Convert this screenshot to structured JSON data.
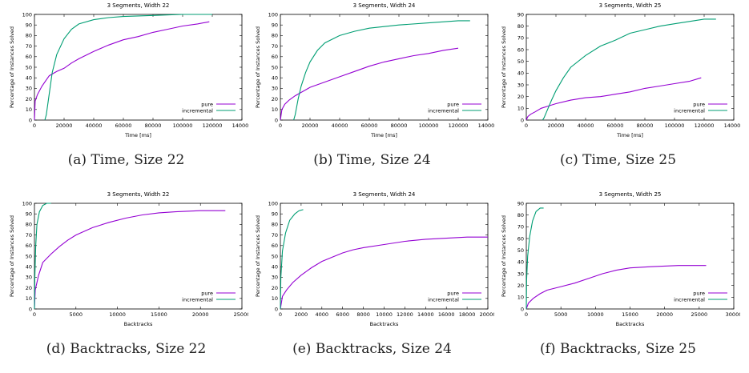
{
  "colors": {
    "pure": "#9400d3",
    "incremental": "#009e73",
    "axis": "#000000"
  },
  "chart_data": [
    {
      "type": "line",
      "title": "3 Segments, Width 22",
      "xlabel": "Time [ms]",
      "ylabel": "Percentage of Instances Solved",
      "xlim": [
        0,
        140000
      ],
      "ylim": [
        0,
        100
      ],
      "xticks": [
        0,
        20000,
        40000,
        60000,
        80000,
        100000,
        120000,
        140000
      ],
      "yticks": [
        0,
        10,
        20,
        30,
        40,
        50,
        60,
        70,
        80,
        90,
        100
      ],
      "legend": "bottom-right",
      "caption": "(a) Time, Size 22",
      "series": [
        {
          "name": "pure",
          "color": "#9400d3",
          "points": [
            [
              0,
              0
            ],
            [
              500,
              18
            ],
            [
              2000,
              24
            ],
            [
              5000,
              32
            ],
            [
              8000,
              38
            ],
            [
              10000,
              42
            ],
            [
              15000,
              46
            ],
            [
              20000,
              49
            ],
            [
              25000,
              54
            ],
            [
              30000,
              58
            ],
            [
              40000,
              65
            ],
            [
              50000,
              71
            ],
            [
              60000,
              76
            ],
            [
              70000,
              79
            ],
            [
              80000,
              83
            ],
            [
              90000,
              86
            ],
            [
              100000,
              89
            ],
            [
              110000,
              91
            ],
            [
              118000,
              93
            ]
          ]
        },
        {
          "name": "incremental",
          "color": "#009e73",
          "points": [
            [
              7000,
              0
            ],
            [
              8000,
              5
            ],
            [
              10000,
              25
            ],
            [
              12000,
              45
            ],
            [
              15000,
              62
            ],
            [
              20000,
              77
            ],
            [
              25000,
              86
            ],
            [
              30000,
              91
            ],
            [
              40000,
              95
            ],
            [
              50000,
              97
            ],
            [
              60000,
              98
            ],
            [
              80000,
              99
            ],
            [
              100000,
              100
            ],
            [
              120000,
              100
            ]
          ]
        }
      ]
    },
    {
      "type": "line",
      "title": "3 Segments, Width 24",
      "xlabel": "Time [ms]",
      "ylabel": "Percentage of Instances Solved",
      "xlim": [
        0,
        140000
      ],
      "ylim": [
        0,
        100
      ],
      "xticks": [
        0,
        20000,
        40000,
        60000,
        80000,
        100000,
        120000,
        140000
      ],
      "yticks": [
        0,
        10,
        20,
        30,
        40,
        50,
        60,
        70,
        80,
        90,
        100
      ],
      "legend": "bottom-right",
      "caption": "(b) Time, Size 24",
      "series": [
        {
          "name": "pure",
          "color": "#9400d3",
          "points": [
            [
              0,
              0
            ],
            [
              1000,
              10
            ],
            [
              3000,
              15
            ],
            [
              6000,
              19
            ],
            [
              10000,
              23
            ],
            [
              15000,
              27
            ],
            [
              20000,
              31
            ],
            [
              30000,
              36
            ],
            [
              40000,
              41
            ],
            [
              50000,
              46
            ],
            [
              60000,
              51
            ],
            [
              70000,
              55
            ],
            [
              80000,
              58
            ],
            [
              90000,
              61
            ],
            [
              100000,
              63
            ],
            [
              110000,
              66
            ],
            [
              120000,
              68
            ]
          ]
        },
        {
          "name": "incremental",
          "color": "#009e73",
          "points": [
            [
              9000,
              0
            ],
            [
              10000,
              5
            ],
            [
              12000,
              20
            ],
            [
              14000,
              32
            ],
            [
              17000,
              45
            ],
            [
              20000,
              55
            ],
            [
              25000,
              66
            ],
            [
              30000,
              73
            ],
            [
              40000,
              80
            ],
            [
              50000,
              84
            ],
            [
              60000,
              87
            ],
            [
              80000,
              90
            ],
            [
              100000,
              92
            ],
            [
              120000,
              94
            ],
            [
              128000,
              94
            ]
          ]
        }
      ]
    },
    {
      "type": "line",
      "title": "3 Segments, Width 25",
      "xlabel": "Time [ms]",
      "ylabel": "Percentage of Instances Solved",
      "xlim": [
        0,
        140000
      ],
      "ylim": [
        0,
        90
      ],
      "xticks": [
        0,
        20000,
        40000,
        60000,
        80000,
        100000,
        120000,
        140000
      ],
      "yticks": [
        0,
        10,
        20,
        30,
        40,
        50,
        60,
        70,
        80,
        90
      ],
      "legend": "bottom-right",
      "caption": "(c) Time, Size 25",
      "series": [
        {
          "name": "pure",
          "color": "#9400d3",
          "points": [
            [
              0,
              0
            ],
            [
              1000,
              3
            ],
            [
              3000,
              5
            ],
            [
              6000,
              7
            ],
            [
              10000,
              10
            ],
            [
              15000,
              12
            ],
            [
              20000,
              14
            ],
            [
              30000,
              17
            ],
            [
              40000,
              19
            ],
            [
              50000,
              20
            ],
            [
              60000,
              22
            ],
            [
              70000,
              24
            ],
            [
              80000,
              27
            ],
            [
              90000,
              29
            ],
            [
              100000,
              31
            ],
            [
              110000,
              33
            ],
            [
              118000,
              36
            ]
          ]
        },
        {
          "name": "incremental",
          "color": "#009e73",
          "points": [
            [
              11000,
              0
            ],
            [
              12000,
              2
            ],
            [
              14000,
              8
            ],
            [
              17000,
              17
            ],
            [
              20000,
              25
            ],
            [
              25000,
              36
            ],
            [
              30000,
              45
            ],
            [
              40000,
              55
            ],
            [
              50000,
              63
            ],
            [
              60000,
              68
            ],
            [
              70000,
              74
            ],
            [
              80000,
              77
            ],
            [
              90000,
              80
            ],
            [
              100000,
              82
            ],
            [
              110000,
              84
            ],
            [
              120000,
              86
            ],
            [
              128000,
              86
            ]
          ]
        }
      ]
    },
    {
      "type": "line",
      "title": "3 Segments, Width 22",
      "xlabel": "Backtracks",
      "ylabel": "Percentage of Instances Solved",
      "xlim": [
        0,
        25000
      ],
      "ylim": [
        0,
        100
      ],
      "xticks": [
        0,
        5000,
        10000,
        15000,
        20000,
        25000
      ],
      "yticks": [
        0,
        10,
        20,
        30,
        40,
        50,
        60,
        70,
        80,
        90,
        100
      ],
      "legend": "bottom-right",
      "caption": "(d) Backtracks, Size 22",
      "series": [
        {
          "name": "pure",
          "color": "#9400d3",
          "points": [
            [
              0,
              0
            ],
            [
              100,
              18
            ],
            [
              500,
              32
            ],
            [
              1000,
              44
            ],
            [
              2000,
              52
            ],
            [
              3000,
              59
            ],
            [
              4000,
              65
            ],
            [
              5000,
              70
            ],
            [
              7000,
              77
            ],
            [
              9000,
              82
            ],
            [
              11000,
              86
            ],
            [
              13000,
              89
            ],
            [
              15000,
              91
            ],
            [
              17000,
              92
            ],
            [
              20000,
              93
            ],
            [
              23000,
              93
            ]
          ]
        },
        {
          "name": "incremental",
          "color": "#009e73",
          "points": [
            [
              0,
              0
            ],
            [
              50,
              30
            ],
            [
              150,
              60
            ],
            [
              300,
              80
            ],
            [
              600,
              92
            ],
            [
              1000,
              98
            ],
            [
              1500,
              100
            ],
            [
              2000,
              100
            ]
          ]
        }
      ]
    },
    {
      "type": "line",
      "title": "3 Segments, Width 24",
      "xlabel": "Backtracks",
      "ylabel": "Percentage of Instances Solved",
      "xlim": [
        0,
        20000
      ],
      "ylim": [
        0,
        100
      ],
      "xticks": [
        0,
        2000,
        4000,
        6000,
        8000,
        10000,
        12000,
        14000,
        16000,
        18000,
        20000
      ],
      "yticks": [
        0,
        10,
        20,
        30,
        40,
        50,
        60,
        70,
        80,
        90,
        100
      ],
      "legend": "bottom-right",
      "caption": "(e) Backtracks, Size 24",
      "series": [
        {
          "name": "pure",
          "color": "#9400d3",
          "points": [
            [
              0,
              0
            ],
            [
              200,
              12
            ],
            [
              600,
              18
            ],
            [
              1200,
              25
            ],
            [
              2000,
              32
            ],
            [
              3000,
              39
            ],
            [
              4000,
              45
            ],
            [
              5000,
              49
            ],
            [
              6000,
              53
            ],
            [
              7000,
              56
            ],
            [
              8000,
              58
            ],
            [
              10000,
              61
            ],
            [
              12000,
              64
            ],
            [
              14000,
              66
            ],
            [
              16000,
              67
            ],
            [
              18000,
              68
            ],
            [
              20000,
              68
            ]
          ]
        },
        {
          "name": "incremental",
          "color": "#009e73",
          "points": [
            [
              0,
              0
            ],
            [
              50,
              30
            ],
            [
              200,
              55
            ],
            [
              500,
              72
            ],
            [
              900,
              84
            ],
            [
              1400,
              90
            ],
            [
              1800,
              93
            ],
            [
              2200,
              94
            ]
          ]
        }
      ]
    },
    {
      "type": "line",
      "title": "3 Segments, Width 25",
      "xlabel": "Backtracks",
      "ylabel": "Percentage of Instances Solved",
      "xlim": [
        0,
        30000
      ],
      "ylim": [
        0,
        90
      ],
      "xticks": [
        0,
        5000,
        10000,
        15000,
        20000,
        25000,
        30000
      ],
      "yticks": [
        0,
        10,
        20,
        30,
        40,
        50,
        60,
        70,
        80,
        90
      ],
      "legend": "bottom-right",
      "caption": "(f) Backtracks, Size 25",
      "series": [
        {
          "name": "pure",
          "color": "#9400d3",
          "points": [
            [
              0,
              0
            ],
            [
              300,
              5
            ],
            [
              1000,
              9
            ],
            [
              2000,
              13
            ],
            [
              3000,
              16
            ],
            [
              5000,
              19
            ],
            [
              7000,
              22
            ],
            [
              9000,
              26
            ],
            [
              11000,
              30
            ],
            [
              13000,
              33
            ],
            [
              15000,
              35
            ],
            [
              18000,
              36
            ],
            [
              22000,
              37
            ],
            [
              26000,
              37
            ]
          ]
        },
        {
          "name": "incremental",
          "color": "#009e73",
          "points": [
            [
              0,
              0
            ],
            [
              50,
              25
            ],
            [
              200,
              45
            ],
            [
              500,
              62
            ],
            [
              900,
              75
            ],
            [
              1400,
              83
            ],
            [
              2000,
              86
            ],
            [
              2500,
              86
            ]
          ]
        }
      ]
    }
  ]
}
